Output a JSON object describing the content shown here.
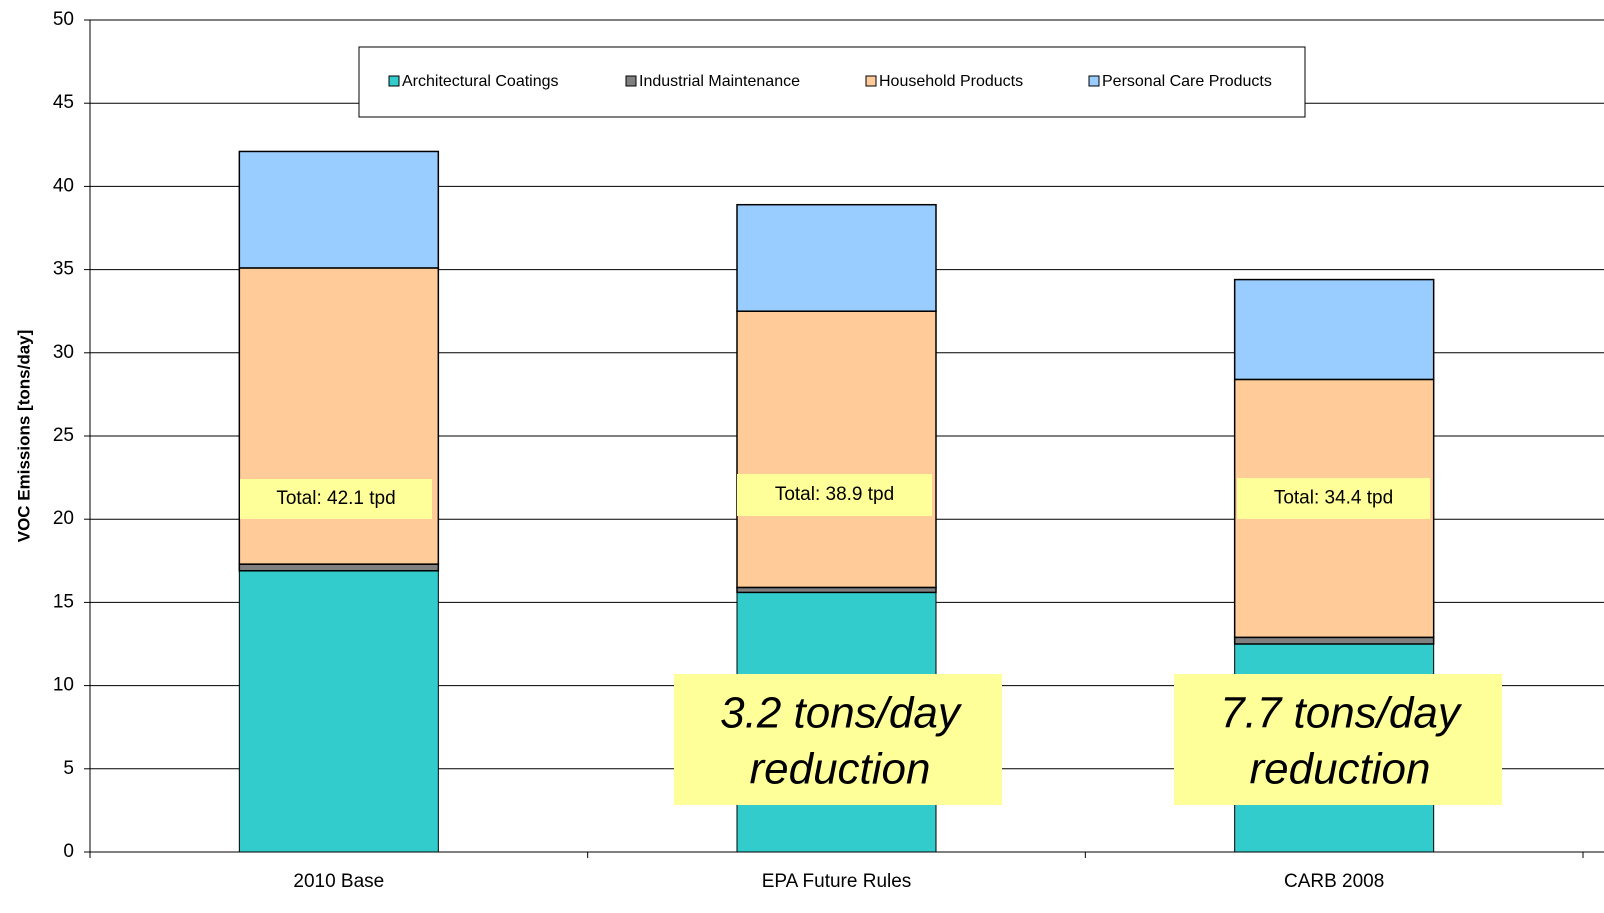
{
  "chart_data": {
    "type": "stacked_bar",
    "y_label": "VOC Emissions [tons/day]",
    "categories": [
      "2010 Base",
      "EPA Future Rules",
      "CARB 2008"
    ],
    "series": [
      {
        "name": "Architectural Coatings",
        "color": "#33cccc",
        "values": [
          16.9,
          15.6,
          12.5
        ]
      },
      {
        "name": "Industrial Maintenance",
        "color": "#808080",
        "values": [
          0.4,
          0.3,
          0.4
        ]
      },
      {
        "name": "Household Products",
        "color": "#ffcc99",
        "values": [
          17.8,
          16.6,
          15.5
        ]
      },
      {
        "name": "Personal Care Products",
        "color": "#99ccff",
        "values": [
          7.0,
          6.4,
          6.0
        ]
      }
    ],
    "totals_labels": [
      "Total: 42.1 tpd",
      "Total: 38.9 tpd",
      "Total: 34.4 tpd"
    ],
    "annotations": [
      {
        "lines": [
          "3.2 tons/day",
          "reduction"
        ]
      },
      {
        "lines": [
          "7.7 tons/day",
          "reduction"
        ]
      }
    ],
    "ylim": [
      0,
      50
    ],
    "yticks": [
      0,
      5,
      10,
      15,
      20,
      25,
      30,
      35,
      40,
      45,
      50
    ],
    "grid": true,
    "legend": "top"
  }
}
